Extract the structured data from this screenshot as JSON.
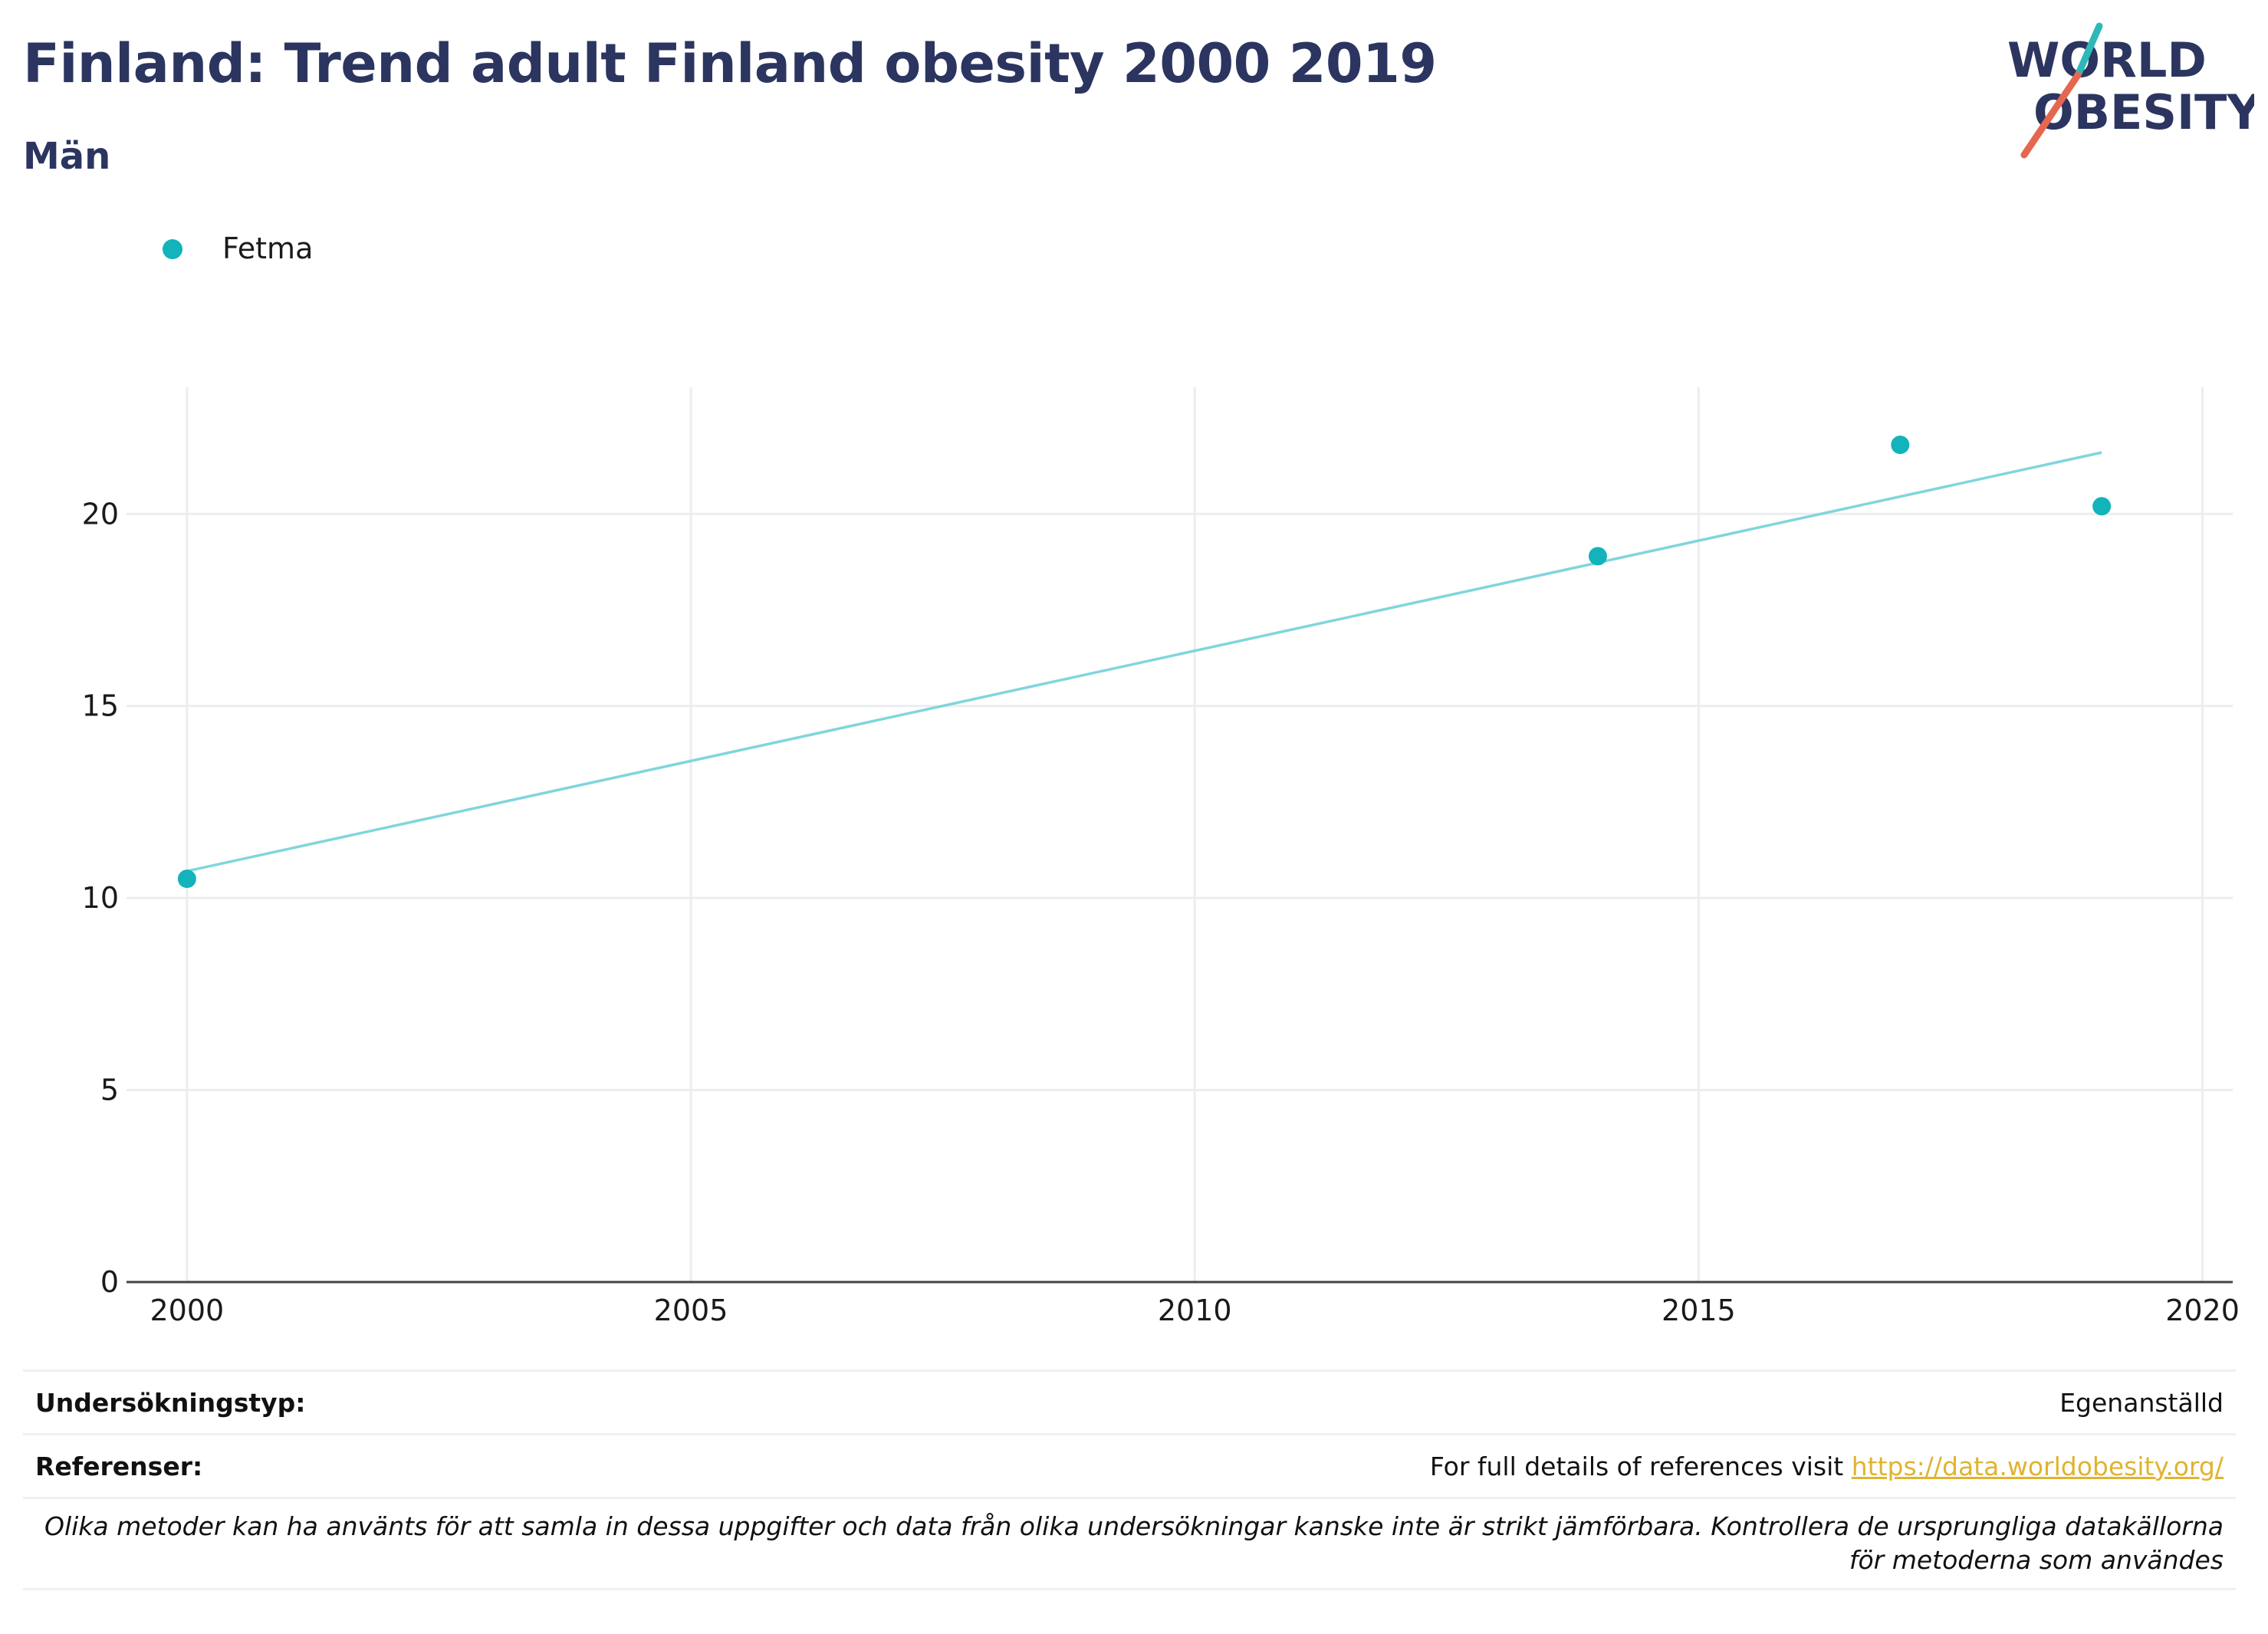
{
  "header": {
    "title": "Finland: Trend adult Finland obesity 2000 2019",
    "subtitle": "Män",
    "logo_line1": "WORLD",
    "logo_line2": "OBESITY"
  },
  "colors": {
    "navy": "#2b3560",
    "series": "#12b3bb",
    "trend": "#7fd6db",
    "logo_teal": "#2fb8b8",
    "logo_red": "#e5674f",
    "link": "#e0b32f"
  },
  "chart_data": {
    "type": "scatter",
    "title": "Finland: Trend adult Finland obesity 2000 2019",
    "subtitle": "Män",
    "xlabel": "",
    "ylabel": "",
    "xlim": [
      1999.4,
      2020.3
    ],
    "ylim": [
      0,
      23.3
    ],
    "xticks": [
      2000,
      2005,
      2010,
      2015,
      2020
    ],
    "yticks": [
      0,
      5,
      10,
      15,
      20
    ],
    "grid": true,
    "legend_position": "top-left",
    "series": [
      {
        "name": "Fetma",
        "x": [
          2000,
          2014,
          2017,
          2019
        ],
        "y": [
          10.5,
          18.9,
          21.8,
          20.2
        ]
      }
    ],
    "trendline": {
      "x": [
        2000,
        2019
      ],
      "y": [
        10.7,
        21.6
      ]
    }
  },
  "footer": {
    "survey_type_label": "Undersökningstyp:",
    "survey_type_value": "Egenanställd",
    "references_label": "Referenser:",
    "references_text": "For full details of references visit ",
    "references_link": "https://data.worldobesity.org/",
    "note": "Olika metoder kan ha använts för att samla in dessa uppgifter och data från olika undersökningar kanske inte är strikt jämförbara. Kontrollera de ursprungliga datakällorna för metoderna som användes"
  }
}
